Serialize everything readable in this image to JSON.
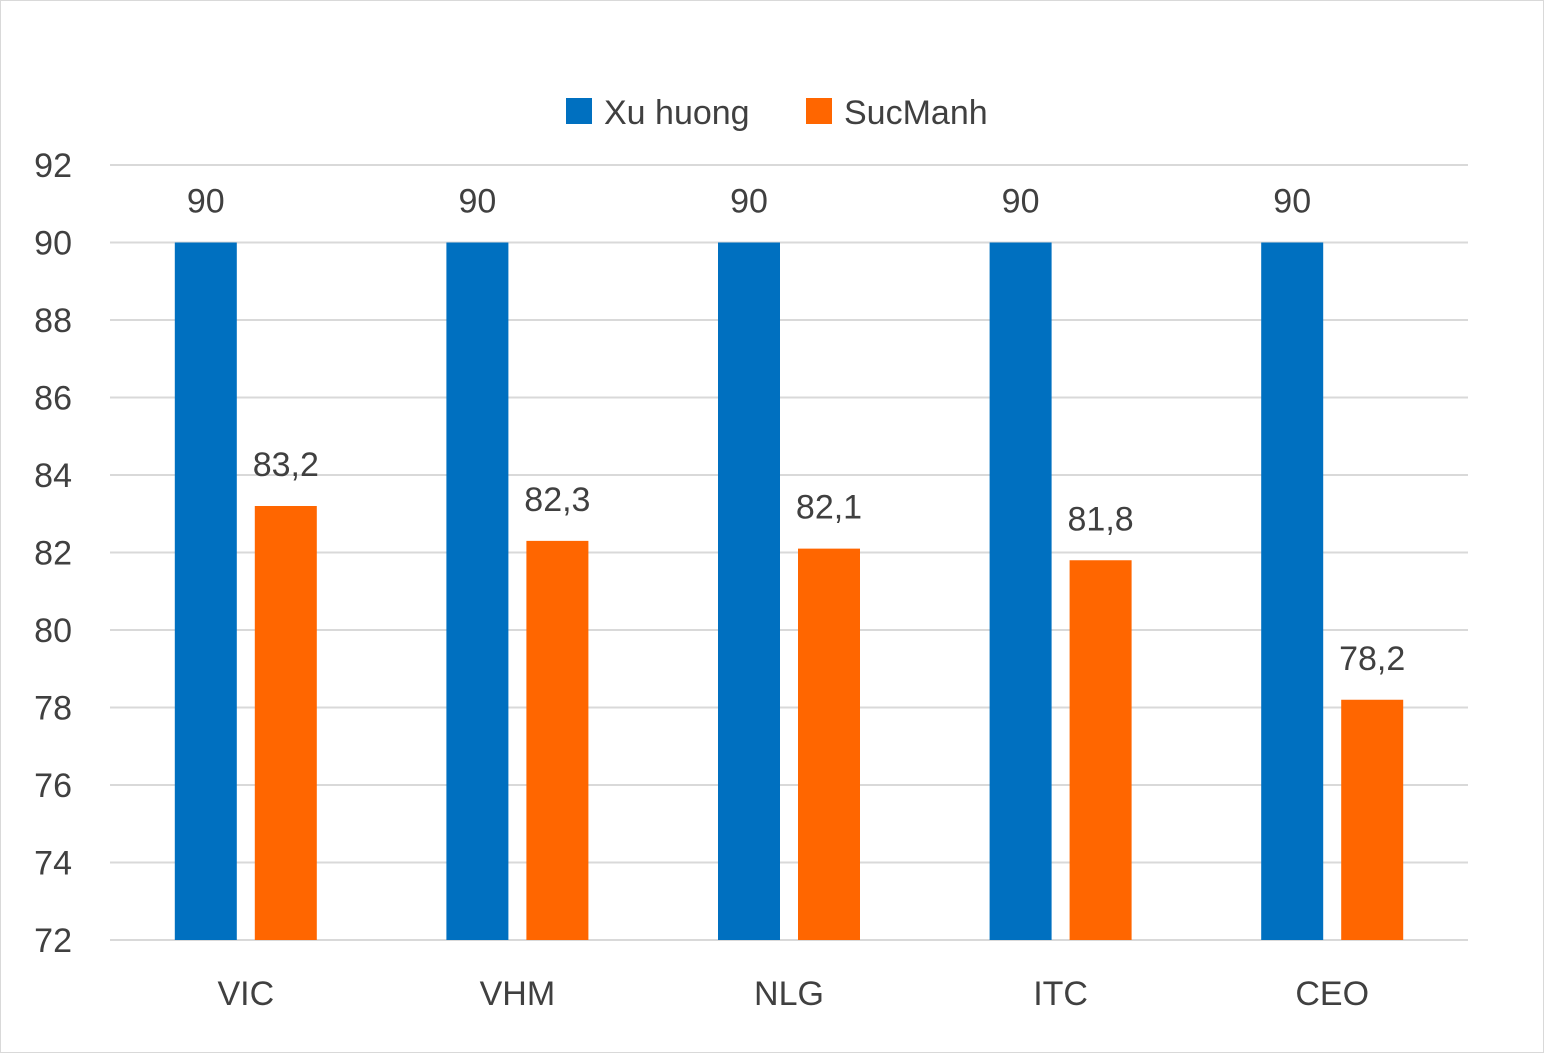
{
  "chart_data": {
    "type": "bar",
    "categories": [
      "VIC",
      "VHM",
      "NLG",
      "ITC",
      "CEO"
    ],
    "series": [
      {
        "name": "Xu huong",
        "values": [
          90,
          90,
          90,
          90,
          90
        ],
        "labels": [
          "90",
          "90",
          "90",
          "90",
          "90"
        ],
        "color": "#0070c0"
      },
      {
        "name": "SucManh",
        "values": [
          83.2,
          82.3,
          82.1,
          81.8,
          78.2
        ],
        "labels": [
          "83,2",
          "82,3",
          "82,1",
          "81,8",
          "78,2"
        ],
        "color": "#ff6600"
      }
    ],
    "yticks": [
      "72",
      "74",
      "76",
      "78",
      "80",
      "82",
      "84",
      "86",
      "88",
      "90",
      "92"
    ],
    "ylim": [
      72,
      92
    ],
    "grid": true,
    "legend": "top"
  }
}
